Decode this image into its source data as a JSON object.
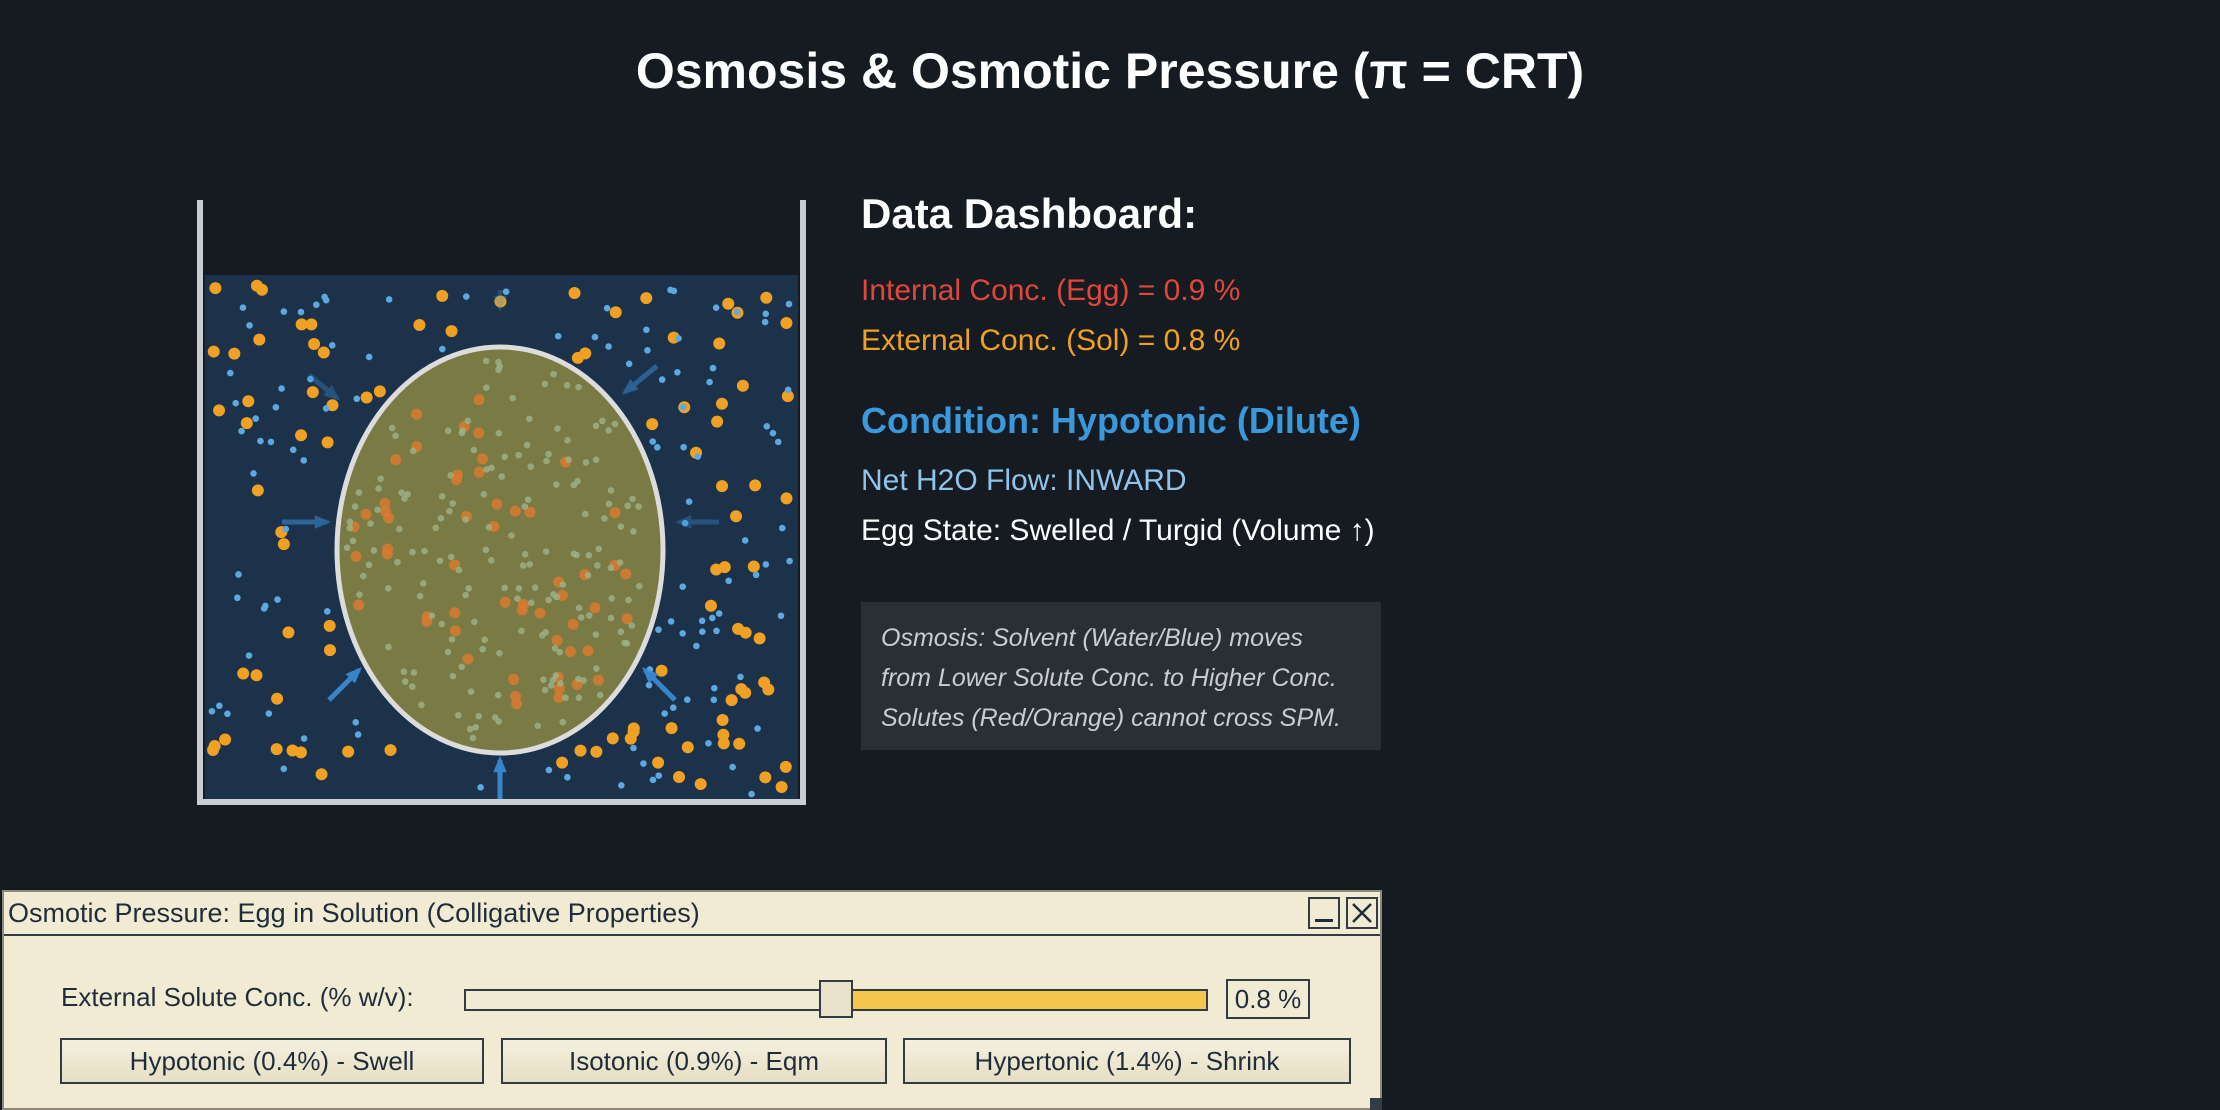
{
  "page": {
    "title": "Osmosis & Osmotic Pressure (π = CRT)"
  },
  "dashboard": {
    "heading": "Data Dashboard:",
    "internal": "Internal Conc. (Egg) = 0.9 %",
    "external": "External Conc. (Sol) = 0.8 %",
    "condition": "Condition: Hypotonic (Dilute)",
    "flow": "Net H2O Flow: INWARD",
    "state": "Egg State: Swelled / Turgid (Volume ↑)"
  },
  "note": {
    "lines": [
      "Osmosis: Solvent (Water/Blue) moves",
      "from Lower Solute Conc. to Higher Conc.",
      "Solutes (Red/Orange) cannot cross SPM."
    ]
  },
  "colors": {
    "internal": "#e0473b",
    "external": "#f0a023",
    "condition": "#3a98dc",
    "flow": "#8fc4eb",
    "solution": "#1c324a",
    "egg": "#7a7a45",
    "water": "#4f9ed8",
    "slider_fill": "#f5c64e"
  },
  "window": {
    "title": "Osmotic Pressure: Egg in Solution (Colligative Properties)",
    "minimize_icon": "minimize-icon",
    "close_icon": "close-icon"
  },
  "controls": {
    "slider_label": "External Solute Conc. (% w/v):",
    "slider_value": "0.8 %",
    "slider_level": 0.5,
    "presets": [
      "Hypotonic (0.4%) - Swell",
      "Isotonic (0.9%) - Eqm",
      "Hypertonic (1.4%) - Shrink"
    ]
  }
}
